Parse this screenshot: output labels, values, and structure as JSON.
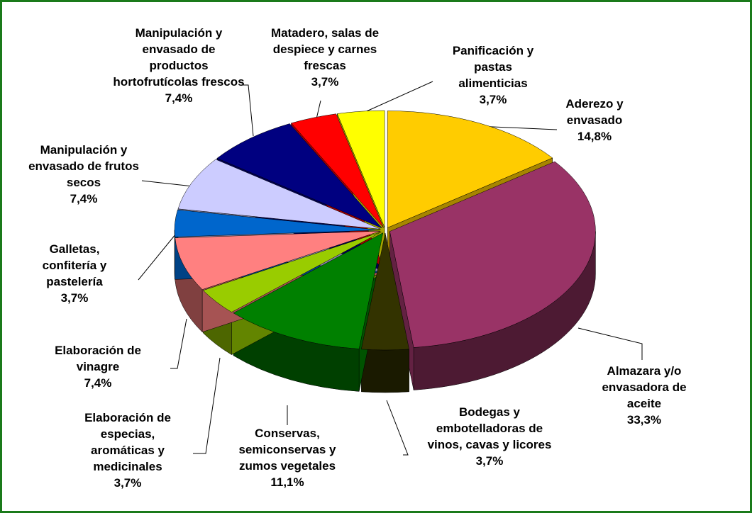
{
  "chart_data": {
    "type": "pie3d",
    "categories": [
      "Aderezo y envasado",
      "Almazara y/o envasadora de aceite",
      "Bodegas y embotelladoras de vinos, cavas y licores",
      "Conservas, semiconservas y zumos vegetales",
      "Elaboración de especias, aromáticas y medicinales",
      "Elaboración de vinagre",
      "Galletas, confitería y pastelería",
      "Manipulación y envasado de frutos secos",
      "Manipulación y envasado de productos hortofrutícolas frescos",
      "Matadero, salas de despiece y carnes frescas",
      "Panificación y pastas alimenticias"
    ],
    "values": [
      14.8,
      33.3,
      3.7,
      11.1,
      3.7,
      7.4,
      3.7,
      7.4,
      7.4,
      3.7,
      3.7
    ],
    "value_labels": [
      "14,8%",
      "33,3%",
      "3,7%",
      "11,1%",
      "3,7%",
      "7,4%",
      "3,7%",
      "7,4%",
      "7,4%",
      "3,7%",
      "3,7%"
    ],
    "colors": [
      "#ffcc00",
      "#993366",
      "#333300",
      "#008000",
      "#99cc00",
      "#ff8080",
      "#0066cc",
      "#ccccff",
      "#000080",
      "#ff0000",
      "#ffff00"
    ]
  }
}
